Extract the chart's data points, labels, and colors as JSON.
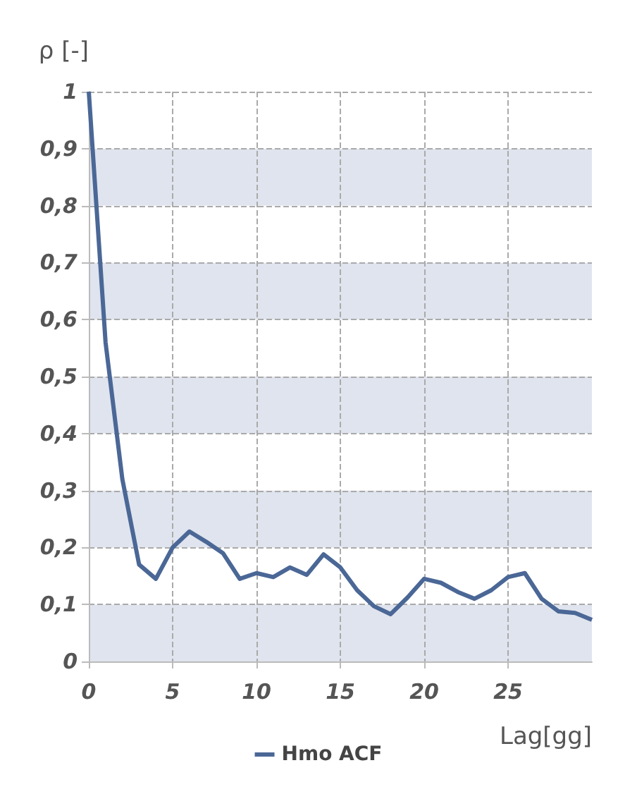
{
  "chart_data": {
    "type": "line",
    "xlabel": "Lag[gg]",
    "ylabel": "ρ [-]",
    "x": [
      0,
      1,
      2,
      3,
      4,
      5,
      6,
      7,
      8,
      9,
      10,
      11,
      12,
      13,
      14,
      15,
      16,
      17,
      18,
      19,
      20,
      21,
      22,
      23,
      24,
      25,
      26,
      27,
      28,
      29,
      30
    ],
    "series": [
      {
        "name": "Hmo ACF",
        "color": "#4a6796",
        "values": [
          1,
          0.56,
          0.32,
          0.17,
          0.145,
          0.2,
          0.228,
          0.21,
          0.19,
          0.145,
          0.155,
          0.148,
          0.165,
          0.152,
          0.188,
          0.165,
          0.125,
          0.097,
          0.083,
          0.112,
          0.145,
          0.138,
          0.122,
          0.11,
          0.125,
          0.148,
          0.155,
          0.11,
          0.088,
          0.085,
          0.073
        ]
      }
    ],
    "xlim": [
      0,
      30
    ],
    "xticks": [
      0,
      5,
      10,
      15,
      20,
      25
    ],
    "ylim": [
      0,
      1
    ],
    "yticks": [
      0,
      {
        "value": 0.1,
        "label": "0,1"
      },
      {
        "value": 0.2,
        "label": "0,2"
      },
      {
        "value": 0.3,
        "label": "0,3"
      },
      {
        "value": 0.4,
        "label": "0,4"
      },
      {
        "value": 0.5,
        "label": "0,5"
      },
      {
        "value": 0.6,
        "label": "0,6"
      },
      {
        "value": 0.7,
        "label": "0,7"
      },
      {
        "value": 0.8,
        "label": "0,8"
      },
      {
        "value": 0.9,
        "label": "0,9"
      },
      1
    ],
    "grid": true,
    "legend": "bottom",
    "marker": "none",
    "line_style": "solid"
  }
}
